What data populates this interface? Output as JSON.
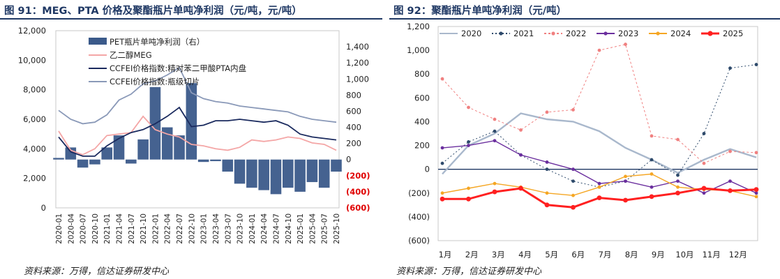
{
  "left": {
    "title": "图 91：MEG、PTA 价格及聚酯瓶片单吨净利润（元/吨，元/吨）",
    "source": "资料来源：万得，信达证券研发中心",
    "chart_data": {
      "type": "line",
      "title": "图 91：MEG、PTA 价格及聚酯瓶片单吨净利润（元/吨，元/吨）",
      "left_axis": {
        "ylim": [
          0,
          12000
        ],
        "ticks": [
          "0",
          "2,000",
          "4,000",
          "6,000",
          "8,000",
          "10,000",
          "12,000"
        ]
      },
      "right_axis": {
        "ylim": [
          -600,
          1600
        ],
        "ticks": [
          "(600)",
          "(400)",
          "(200)",
          "0",
          "200",
          "400",
          "600",
          "800",
          "1,000",
          "1,200",
          "1,400"
        ]
      },
      "x_ticks": [
        "2020-01",
        "2020-04",
        "2020-07",
        "2020-10",
        "2021-01",
        "2021-04",
        "2021-07",
        "2021-10",
        "2022-01",
        "2022-04",
        "2022-07",
        "2022-10",
        "2023-01",
        "2023-04",
        "2023-07",
        "2023-10",
        "2024-01",
        "2024-04",
        "2024-07",
        "2024-10",
        "2025-01",
        "2025-04",
        "2025-07",
        "2025-10"
      ],
      "legend_position": "top-right",
      "series": [
        {
          "name": "PET瓶片单吨净利润（右）",
          "kind": "bar",
          "axis": "right",
          "color": "#3b5a8a",
          "values": [
            20,
            150,
            -100,
            -60,
            150,
            300,
            -50,
            250,
            900,
            400,
            300,
            950,
            -30,
            -20,
            -150,
            -300,
            -350,
            -380,
            -430,
            -350,
            -400,
            -280,
            -350,
            -150
          ]
        },
        {
          "name": "乙二醇MEG",
          "kind": "line",
          "axis": "left",
          "color": "#f4a6a6",
          "values": [
            5200,
            3900,
            3600,
            4000,
            4900,
            5000,
            5100,
            6200,
            5300,
            5000,
            4800,
            4300,
            4200,
            4000,
            3900,
            4100,
            4600,
            4500,
            4600,
            4800,
            4700,
            4400,
            4300,
            3900
          ]
        },
        {
          "name": "CCFEI价格指数:精对苯二甲酸PTA内盘",
          "kind": "line",
          "axis": "left",
          "color": "#1a2a5e",
          "values": [
            4800,
            3800,
            3500,
            3500,
            4200,
            4700,
            5100,
            5300,
            5700,
            6200,
            6800,
            5500,
            5600,
            5900,
            5900,
            6000,
            5900,
            5800,
            5900,
            5600,
            5000,
            4800,
            4700,
            4600
          ]
        },
        {
          "name": "CCFEI价格指数:瓶级切片",
          "kind": "line",
          "axis": "left",
          "color": "#8a99b8",
          "values": [
            6600,
            6000,
            5700,
            5800,
            6300,
            7300,
            7700,
            8400,
            8600,
            9000,
            9500,
            7800,
            7400,
            7200,
            7100,
            6900,
            6800,
            6700,
            6600,
            6500,
            6200,
            6000,
            5900,
            5800
          ]
        }
      ]
    }
  },
  "right": {
    "title": "图 92：聚酯瓶片单吨净利润（元/吨）",
    "source": "资料来源：万得，信达证券研发中心",
    "chart_data": {
      "type": "line",
      "title": "图 92：聚酯瓶片单吨净利润（元/吨）",
      "ylim": [
        -600,
        1200
      ],
      "y_ticks": [
        "(600)",
        "(400)",
        "(200)",
        "0",
        "200",
        "400",
        "600",
        "800",
        "1,000",
        "1,200"
      ],
      "x_ticks": [
        "1月",
        "2月",
        "3月",
        "4月",
        "5月",
        "6月",
        "7月",
        "8月",
        "9月",
        "10月",
        "11月",
        "12月"
      ],
      "legend_position": "top",
      "series": [
        {
          "name": "2020",
          "color": "#a9b8cc",
          "style": "solid-thick",
          "values": [
            -40,
            200,
            300,
            470,
            420,
            400,
            320,
            180,
            80,
            -30,
            80,
            170,
            100
          ]
        },
        {
          "name": "2021",
          "color": "#2e4a6b",
          "style": "dotted-markers",
          "values": [
            50,
            230,
            320,
            120,
            0,
            -100,
            -150,
            -100,
            80,
            -50,
            300,
            850,
            880
          ]
        },
        {
          "name": "2022",
          "color": "#f08080",
          "style": "dashed-markers",
          "values": [
            760,
            520,
            420,
            330,
            480,
            500,
            1000,
            1050,
            280,
            250,
            50,
            150,
            140
          ]
        },
        {
          "name": "2023",
          "color": "#6b2f9e",
          "style": "solid-markers",
          "values": [
            180,
            200,
            240,
            120,
            60,
            0,
            -120,
            -100,
            -150,
            -100,
            -200,
            -100,
            -200
          ]
        },
        {
          "name": "2024",
          "color": "#f5a623",
          "style": "solid-markers",
          "values": [
            -200,
            -160,
            -120,
            -150,
            -200,
            -220,
            -150,
            -60,
            -40,
            -150,
            -170,
            -180,
            -230
          ]
        },
        {
          "name": "2025",
          "color": "#ff2020",
          "style": "thick-markers",
          "values": [
            -250,
            -250,
            -190,
            -160,
            -300,
            -320,
            -240,
            -260,
            -230,
            -200,
            -160,
            -180,
            -170
          ]
        }
      ]
    }
  }
}
